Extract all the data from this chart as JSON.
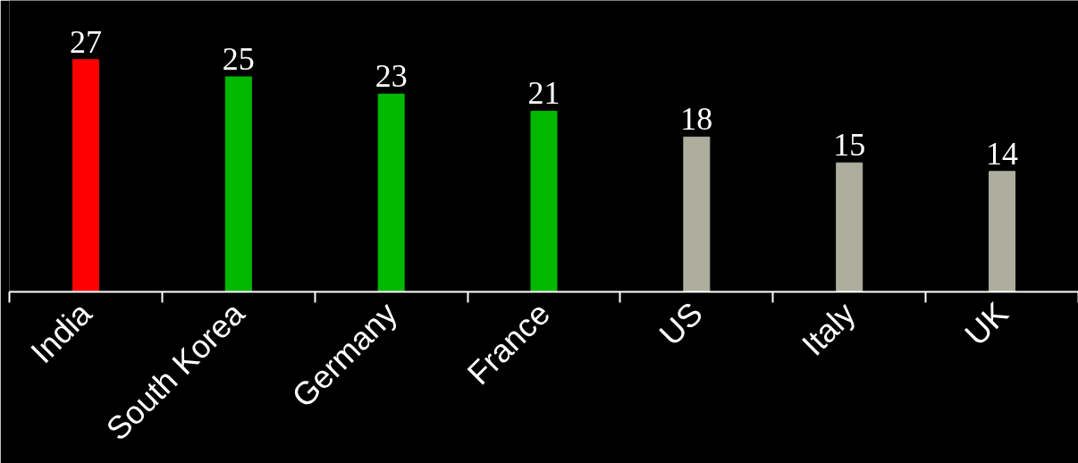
{
  "chart_data": {
    "type": "bar",
    "categories": [
      "India",
      "South Korea",
      "Germany",
      "France",
      "US",
      "Italy",
      "UK"
    ],
    "values": [
      27,
      25,
      23,
      21,
      18,
      15,
      14
    ],
    "colors": [
      "#ff0000",
      "#00b800",
      "#00b800",
      "#00b800",
      "#aeae9f",
      "#aeae9f",
      "#aeae9f"
    ],
    "data_labels": true
  }
}
